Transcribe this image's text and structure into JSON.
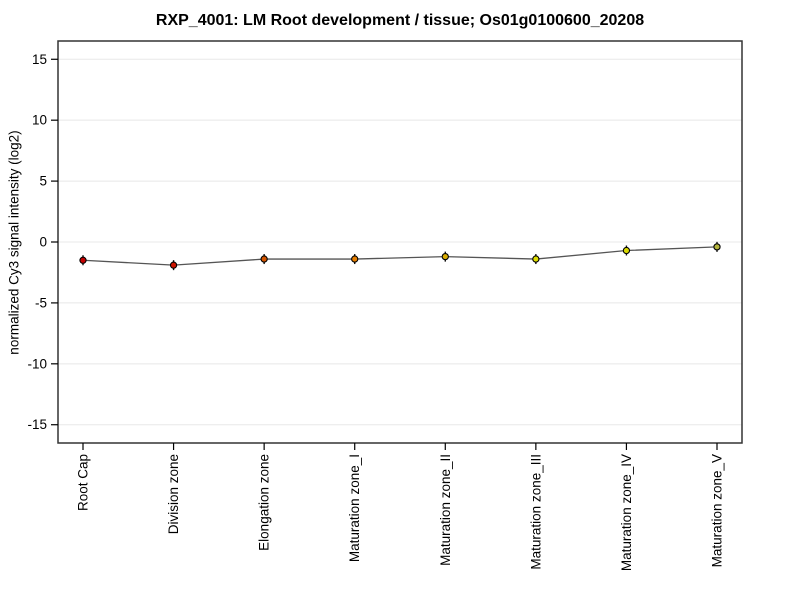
{
  "chart_data": {
    "type": "line",
    "title": "RXP_4001: LM Root development / tissue; Os01g0100600_20208",
    "xlabel": "",
    "ylabel": "normalized Cy3 signal intensity (log2)",
    "categories": [
      "Root Cap",
      "Division zone",
      "Elongation zone",
      "Maturation zone_I",
      "Maturation zone_II",
      "Maturation zone_III",
      "Maturation zone_IV",
      "Maturation zone_V"
    ],
    "values": [
      -1.5,
      -1.9,
      -1.4,
      -1.4,
      -1.2,
      -1.4,
      -0.7,
      -0.4
    ],
    "point_colors": [
      "#c40000",
      "#cc1400",
      "#d45500",
      "#e67e00",
      "#d9ac00",
      "#dddd00",
      "#d9d900",
      "#b3b33b"
    ],
    "yticks": [
      -15,
      -10,
      -5,
      0,
      5,
      10,
      15
    ],
    "ylim": [
      -16.5,
      16.5
    ],
    "grid": "horizontal",
    "grid_color": "#e8e8e8",
    "line_color": "#555555",
    "error_bar_color": "#111111",
    "marker_outline": "#000000",
    "tick_color": "#000000",
    "border_color": "#333333",
    "legend": "none",
    "background": "#ffffff"
  }
}
